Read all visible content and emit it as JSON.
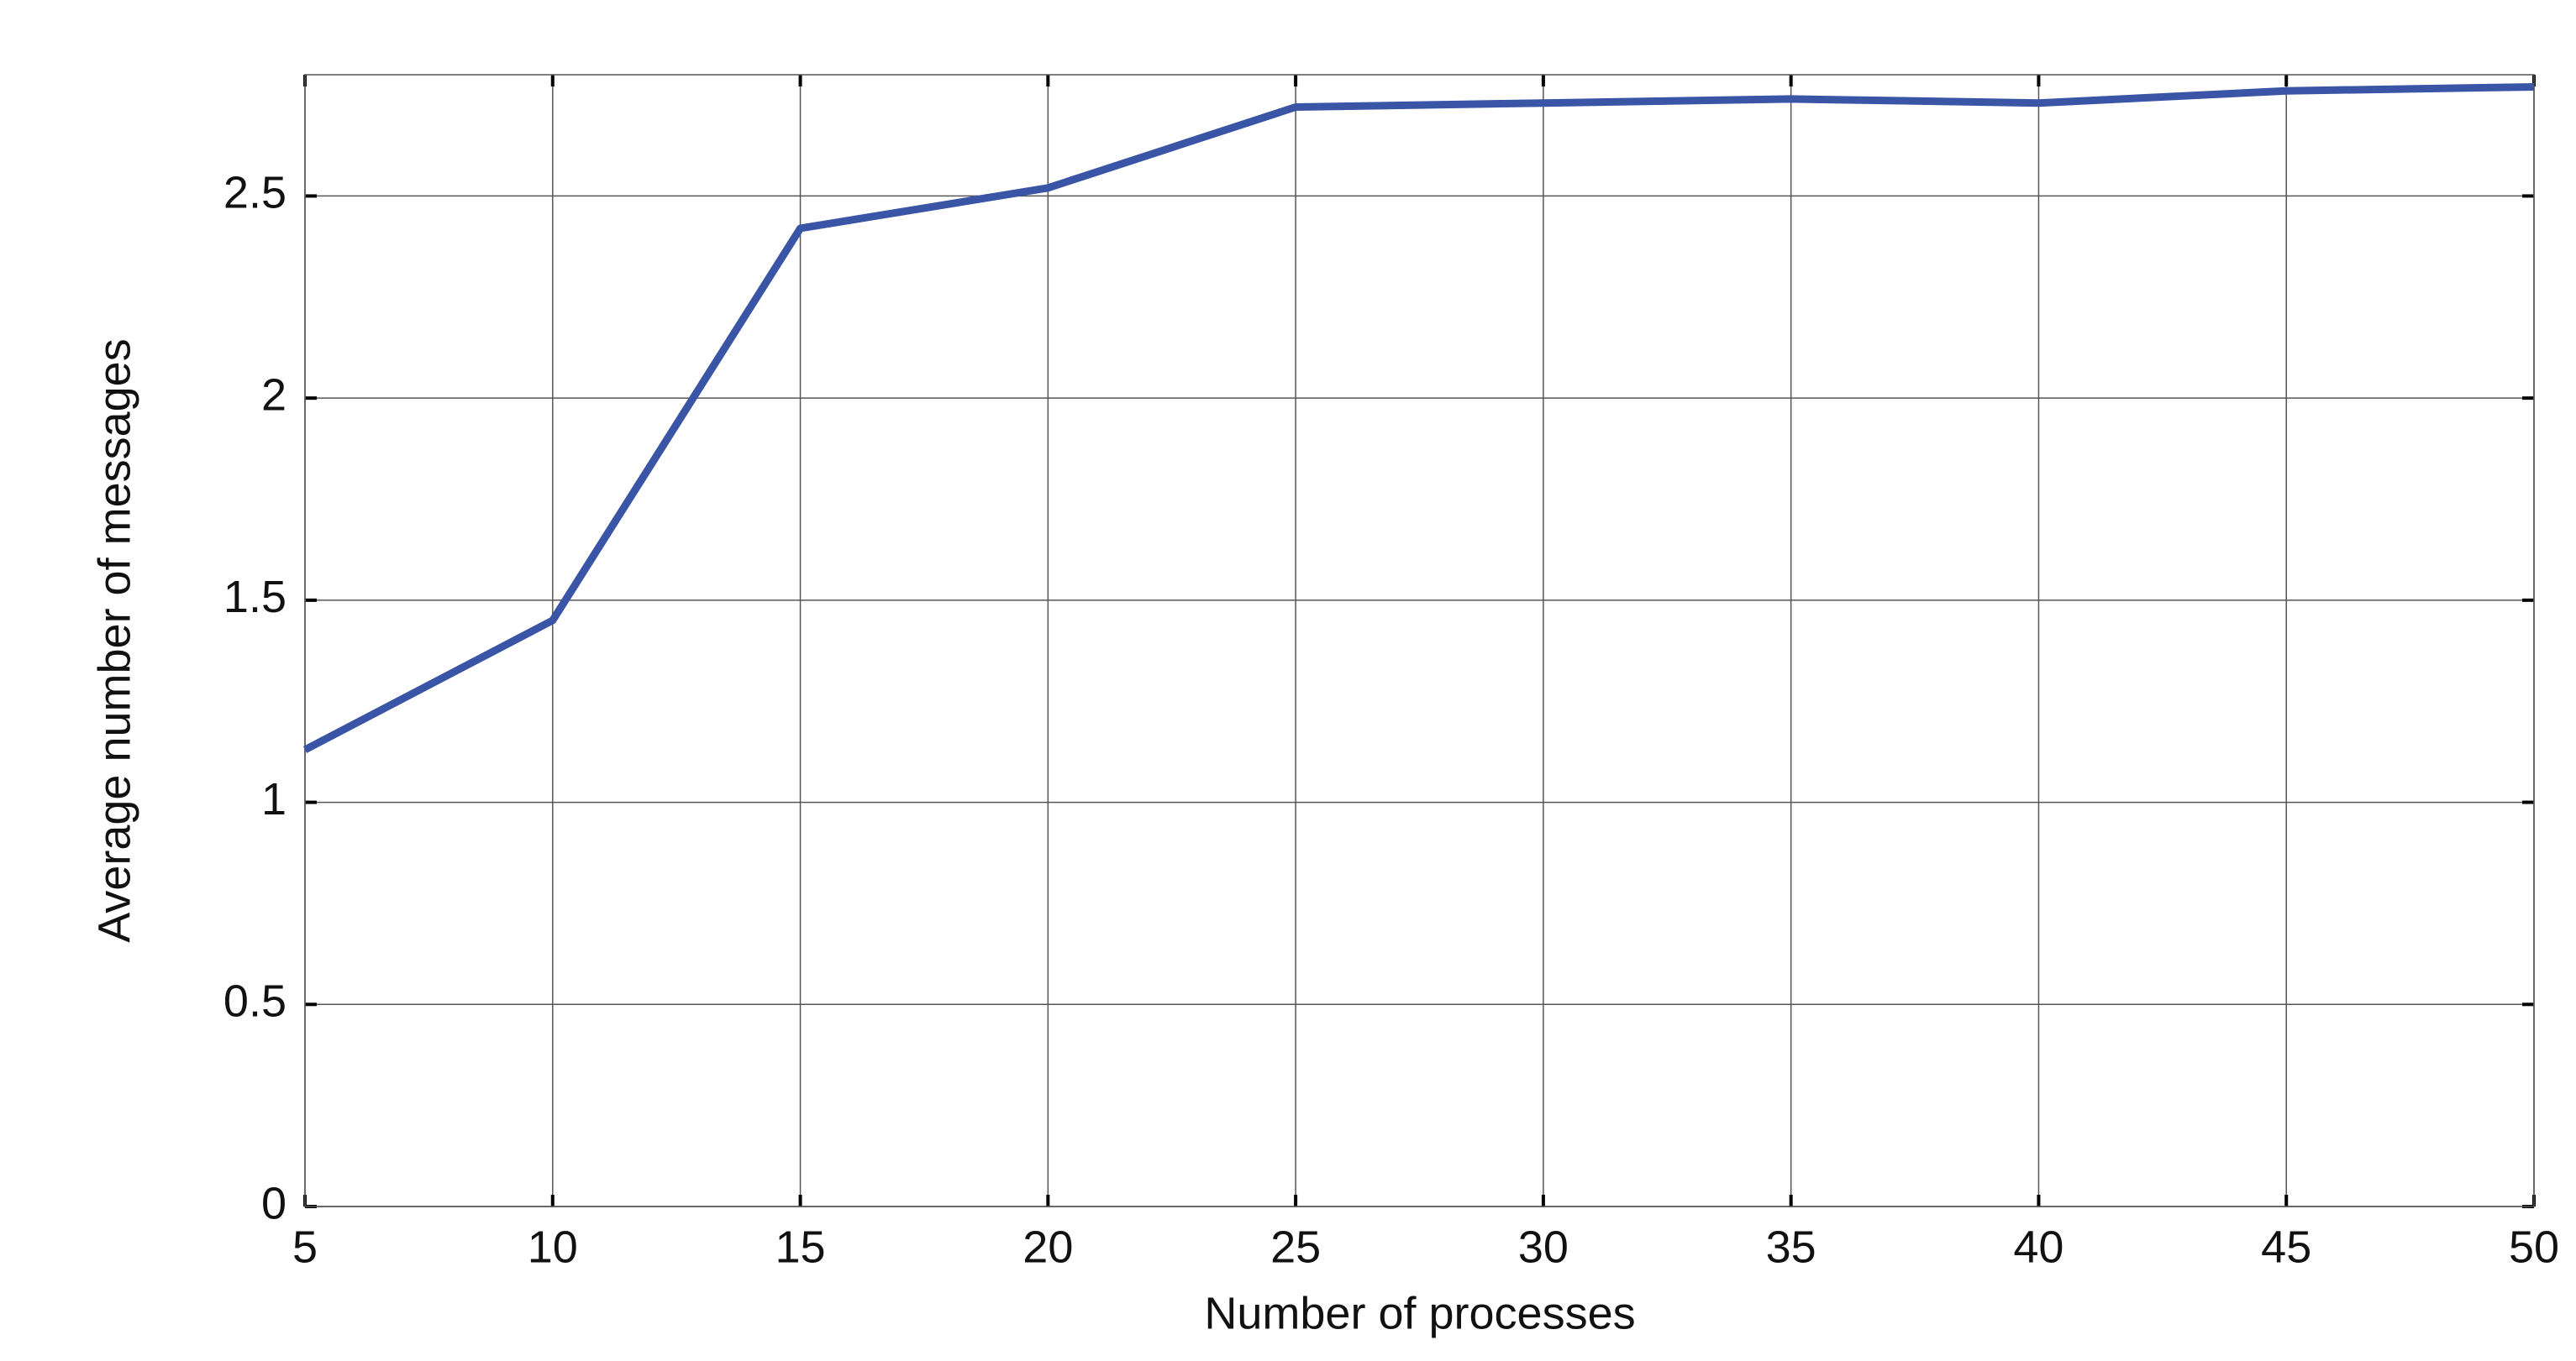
{
  "chart_data": {
    "type": "line",
    "x_label": "Number of processes",
    "y_label": "Average number of messages",
    "x": [
      5,
      10,
      15,
      20,
      25,
      30,
      35,
      40,
      45,
      50
    ],
    "series": [
      {
        "name": "Average number of messages",
        "color": "#3a54a6",
        "values": [
          1.13,
          1.45,
          2.42,
          2.52,
          2.72,
          2.73,
          2.74,
          2.73,
          2.76,
          2.77
        ]
      }
    ],
    "xlim": [
      5,
      50
    ],
    "xticks": [
      5,
      10,
      15,
      20,
      25,
      30,
      35,
      40,
      45,
      50
    ],
    "ylim": [
      0,
      2.8
    ],
    "yticks": [
      0,
      0.5,
      1,
      1.5,
      2,
      2.5
    ],
    "grid": true
  }
}
